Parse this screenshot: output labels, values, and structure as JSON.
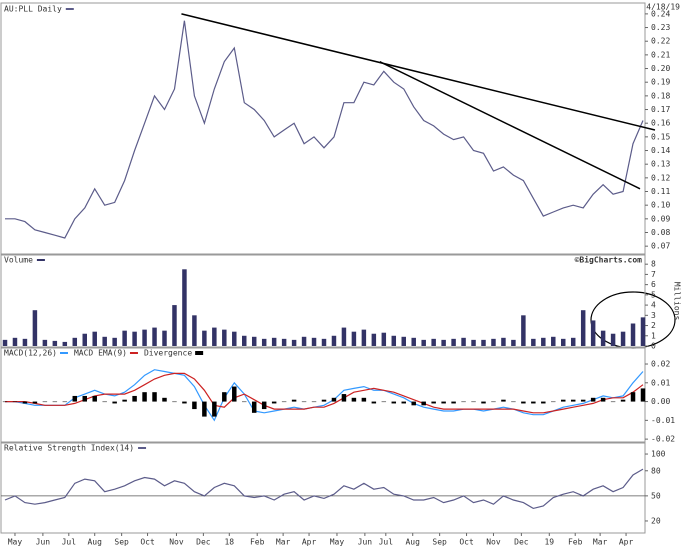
{
  "chart_data": [
    {
      "type": "line",
      "title": "AU:PLL Daily",
      "date": "4/18/19",
      "ylim": [
        0.065,
        0.2465
      ],
      "yticks": [
        0.24,
        0.23,
        0.22,
        0.21,
        {
          "value": 0.2,
          "label": "0.20"
        },
        0.19,
        0.18,
        0.17,
        0.16,
        0.15,
        0.14,
        0.13,
        0.12,
        0.11,
        {
          "value": 0.1,
          "label": "0.10"
        },
        0.09,
        0.08,
        0.07
      ],
      "series": [
        {
          "kind": "line",
          "color": "#5c5c8a",
          "values": [
            0.09,
            0.09,
            0.088,
            0.082,
            0.08,
            0.078,
            0.076,
            0.09,
            0.098,
            0.112,
            0.1,
            0.102,
            0.118,
            0.14,
            0.16,
            0.18,
            0.17,
            0.185,
            0.235,
            0.18,
            0.16,
            0.185,
            0.205,
            0.215,
            0.175,
            0.17,
            0.162,
            0.15,
            0.155,
            0.16,
            0.145,
            0.15,
            0.142,
            0.15,
            0.175,
            0.175,
            0.19,
            0.188,
            0.198,
            0.19,
            0.185,
            0.172,
            0.162,
            0.158,
            0.152,
            0.148,
            0.15,
            0.14,
            0.138,
            0.125,
            0.128,
            0.122,
            0.118,
            0.105,
            0.092,
            0.095,
            0.098,
            0.1,
            0.098,
            0.108,
            0.115,
            0.108,
            0.11,
            0.145,
            0.162
          ]
        }
      ],
      "trendlines": [
        {
          "color": "#000000",
          "points": [
            [
              17.7,
              0.24
            ],
            [
              65.2,
              0.155
            ]
          ]
        },
        {
          "color": "#000000",
          "points": [
            [
              37.6,
              0.205
            ],
            [
              63.7,
              0.112
            ]
          ]
        }
      ]
    },
    {
      "type": "bar",
      "title": "Volume",
      "credit": "©BigCharts.com",
      "ylabel": "Millions",
      "ylim": [
        0,
        8.8
      ],
      "yticks": [
        8,
        7,
        6,
        5,
        4,
        3,
        2,
        1,
        0
      ],
      "series": [
        {
          "kind": "bar",
          "color": "#333366",
          "values": [
            0.6,
            0.8,
            0.7,
            3.5,
            0.6,
            0.5,
            0.4,
            0.8,
            1.2,
            1.4,
            0.9,
            0.8,
            1.5,
            1.4,
            1.6,
            1.8,
            1.5,
            4.0,
            7.5,
            3.0,
            1.5,
            1.8,
            1.6,
            1.4,
            1.0,
            0.9,
            0.7,
            0.8,
            0.7,
            0.6,
            0.9,
            0.8,
            0.7,
            1.0,
            1.8,
            1.4,
            1.6,
            1.2,
            1.3,
            1.0,
            0.9,
            0.8,
            0.6,
            0.7,
            0.6,
            0.7,
            0.8,
            0.6,
            0.6,
            0.7,
            0.8,
            0.6,
            3.0,
            0.7,
            0.8,
            0.9,
            0.7,
            0.8,
            3.5,
            2.5,
            1.5,
            1.2,
            1.4,
            2.2,
            2.8
          ]
        }
      ]
    },
    {
      "type": "line",
      "ylim": [
        -0.021,
        0.028
      ],
      "yticks": [
        0.02,
        0.01,
        {
          "value": 0,
          "label": "0.00"
        },
        -0.01,
        -0.02
      ],
      "series": [
        {
          "name": "MACD(12,26)",
          "kind": "line",
          "color": "#3399ff",
          "values": [
            0,
            0,
            -0.001,
            -0.002,
            -0.002,
            -0.002,
            -0.002,
            0.002,
            0.004,
            0.006,
            0.004,
            0.003,
            0.005,
            0.009,
            0.014,
            0.017,
            0.016,
            0.015,
            0.014,
            0.008,
            -0.002,
            -0.01,
            0.002,
            0.01,
            0.004,
            -0.005,
            -0.006,
            -0.005,
            -0.004,
            -0.003,
            -0.004,
            -0.003,
            -0.002,
            0.001,
            0.006,
            0.007,
            0.008,
            0.006,
            0.006,
            0.004,
            0.002,
            -0.001,
            -0.003,
            -0.004,
            -0.005,
            -0.005,
            -0.004,
            -0.004,
            -0.005,
            -0.004,
            -0.003,
            -0.004,
            -0.006,
            -0.007,
            -0.007,
            -0.005,
            -0.003,
            -0.002,
            -0.001,
            0.001,
            0.003,
            0.002,
            0.003,
            0.01,
            0.016
          ]
        },
        {
          "name": "MACD EMA(9)",
          "kind": "line",
          "color": "#cc2222",
          "values": [
            0,
            0,
            0,
            -0.001,
            -0.002,
            -0.002,
            -0.002,
            -0.001,
            0.001,
            0.003,
            0.004,
            0.004,
            0.004,
            0.006,
            0.009,
            0.012,
            0.014,
            0.015,
            0.015,
            0.012,
            0.006,
            -0.002,
            -0.003,
            0.002,
            0.004,
            0.001,
            -0.002,
            -0.004,
            -0.004,
            -0.004,
            -0.004,
            -0.003,
            -0.003,
            -0.001,
            0.002,
            0.005,
            0.006,
            0.007,
            0.006,
            0.005,
            0.003,
            0.001,
            -0.001,
            -0.003,
            -0.004,
            -0.004,
            -0.004,
            -0.004,
            -0.004,
            -0.004,
            -0.004,
            -0.004,
            -0.005,
            -0.006,
            -0.006,
            -0.005,
            -0.004,
            -0.003,
            -0.002,
            -0.001,
            0.001,
            0.002,
            0.002,
            0.005,
            0.009
          ]
        },
        {
          "name": "Divergence",
          "kind": "bar",
          "color": "#000000",
          "values": [
            0,
            0,
            -0.001,
            -0.001,
            0,
            0,
            0,
            0.003,
            0.003,
            0.003,
            0,
            -0.001,
            0.001,
            0.003,
            0.005,
            0.005,
            0.002,
            0,
            -0.001,
            -0.004,
            -0.008,
            -0.008,
            0.005,
            0.008,
            0,
            -0.006,
            -0.004,
            -0.001,
            0,
            0.001,
            0,
            0,
            0.001,
            0.002,
            0.004,
            0.002,
            0.002,
            -0.001,
            0,
            -0.001,
            -0.001,
            -0.002,
            -0.002,
            -0.001,
            -0.001,
            -0.001,
            0,
            0,
            -0.001,
            0,
            0.001,
            0,
            -0.001,
            -0.001,
            -0.001,
            0,
            0.001,
            0.001,
            0.001,
            0.002,
            0.002,
            0,
            0.001,
            0.005,
            0.007
          ]
        }
      ]
    },
    {
      "type": "line",
      "title": "Relative Strength Index(14)",
      "ylim": [
        8,
        112
      ],
      "yticks": [
        100,
        80,
        50,
        20
      ],
      "reference_line": 50,
      "series": [
        {
          "kind": "line",
          "color": "#5c5c8a",
          "values": [
            45,
            50,
            42,
            40,
            42,
            45,
            48,
            65,
            70,
            68,
            55,
            58,
            62,
            68,
            72,
            70,
            62,
            68,
            65,
            55,
            50,
            60,
            65,
            62,
            50,
            48,
            50,
            45,
            52,
            55,
            45,
            50,
            47,
            52,
            62,
            58,
            65,
            58,
            60,
            52,
            50,
            45,
            45,
            48,
            42,
            45,
            50,
            42,
            45,
            40,
            50,
            45,
            42,
            35,
            38,
            48,
            52,
            55,
            50,
            58,
            62,
            55,
            60,
            75,
            82
          ]
        }
      ],
      "xticks": [
        {
          "value": 1.0,
          "label": "May"
        },
        {
          "value": 3.8,
          "label": "Jun"
        },
        {
          "value": 6.4,
          "label": "Jul"
        },
        {
          "value": 9.0,
          "label": "Aug"
        },
        {
          "value": 11.7,
          "label": "Sep"
        },
        {
          "value": 14.3,
          "label": "Oct"
        },
        {
          "value": 17.2,
          "label": "Nov"
        },
        {
          "value": 19.9,
          "label": "Dec"
        },
        {
          "value": 22.5,
          "label": "18"
        },
        {
          "value": 25.3,
          "label": "Feb"
        },
        {
          "value": 27.9,
          "label": "Mar"
        },
        {
          "value": 30.5,
          "label": "Apr"
        },
        {
          "value": 33.3,
          "label": "May"
        },
        {
          "value": 36.1,
          "label": "Jun"
        },
        {
          "value": 38.2,
          "label": "Jul"
        },
        {
          "value": 40.9,
          "label": "Aug"
        },
        {
          "value": 43.6,
          "label": "Sep"
        },
        {
          "value": 46.3,
          "label": "Oct"
        },
        {
          "value": 49.0,
          "label": "Nov"
        },
        {
          "value": 51.8,
          "label": "Dec"
        },
        {
          "value": 54.6,
          "label": "19"
        },
        {
          "value": 57.2,
          "label": "Feb"
        },
        {
          "value": 59.7,
          "label": "Mar"
        },
        {
          "value": 62.3,
          "label": "Apr"
        }
      ]
    }
  ]
}
